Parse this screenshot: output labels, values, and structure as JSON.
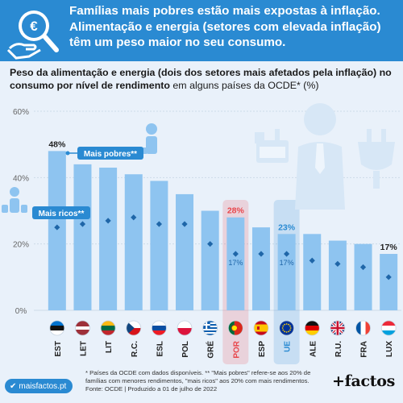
{
  "header": {
    "headline": "Famílias mais pobres estão mais expostas à inflação. Alimentação e energia (setores com elevada inflação) têm um peso maior no seu consumo."
  },
  "subtitle": {
    "bold": "Peso da alimentação e energia (dois dos setores mais afetados pela inflação) no consumo por nível de rendimento",
    "normal": " em alguns países da OCDE* (%)"
  },
  "chart_data": {
    "type": "bar",
    "ylabel": "",
    "ylim": [
      0,
      60
    ],
    "y_ticks": [
      "0%",
      "20%",
      "40%",
      "60%"
    ],
    "grid": true,
    "categories": [
      "EST",
      "LET",
      "LIT",
      "R.C.",
      "ESL",
      "POL",
      "GRÉ",
      "POR",
      "ESP",
      "UE",
      "ALE",
      "R.U.",
      "FRA",
      "LUX"
    ],
    "flags": [
      "EST",
      "LET",
      "LIT",
      "R.C.",
      "ESL",
      "POL",
      "GRÉ",
      "POR",
      "ESP",
      "UE",
      "ALE",
      "R.U.",
      "FRA",
      "LUX"
    ],
    "series": [
      {
        "name": "Mais pobres**",
        "mark": "bar",
        "values": [
          48,
          44,
          43,
          41,
          39,
          35,
          30,
          28,
          25,
          23,
          23,
          21,
          20,
          17
        ]
      },
      {
        "name": "Mais ricos**",
        "mark": "diamond",
        "values": [
          25,
          26,
          27,
          28,
          26,
          26,
          20,
          17,
          17,
          17,
          15,
          14,
          13,
          10
        ]
      }
    ],
    "annotations": [
      {
        "category": "EST",
        "series": "Mais pobres**",
        "text": "48%"
      },
      {
        "category": "POR",
        "series": "Mais pobres**",
        "text": "28%"
      },
      {
        "category": "POR",
        "series": "Mais ricos**",
        "text": "17%"
      },
      {
        "category": "UE",
        "series": "Mais pobres**",
        "text": "23%"
      },
      {
        "category": "UE",
        "series": "Mais ricos**",
        "text": "17%"
      },
      {
        "category": "LUX",
        "series": "Mais pobres**",
        "text": "17%"
      }
    ],
    "highlight": {
      "POR": "#e8474c",
      "UE": "#2a8ad2"
    }
  },
  "colors": {
    "bar": "#8ec4f0",
    "diamond": "#1f66a8",
    "header_bg": "#2a8ad2",
    "background": "#e9f1fa",
    "grid": "#cddbe8",
    "por_highlight": "#e8474c",
    "ue_highlight": "#2a8ad2"
  },
  "icons": [
    "euro-coin-magnifier-icon",
    "poor-person-icon",
    "rich-person-icon",
    "groceries-icon",
    "businessman-icon",
    "power-plug-icon",
    "checkmark-icon"
  ],
  "footer": {
    "badge": "maisfactos.pt",
    "footnote": "* Países da OCDE com dados disponíveis. ** \"Mais pobres\" refere-se aos 20% de famílias com menores rendimentos, \"mais ricos\" aos 20% com mais rendimentos. Fonte: OCDE | Produzido a 01 de julho de 2022",
    "brand": "+factos"
  }
}
